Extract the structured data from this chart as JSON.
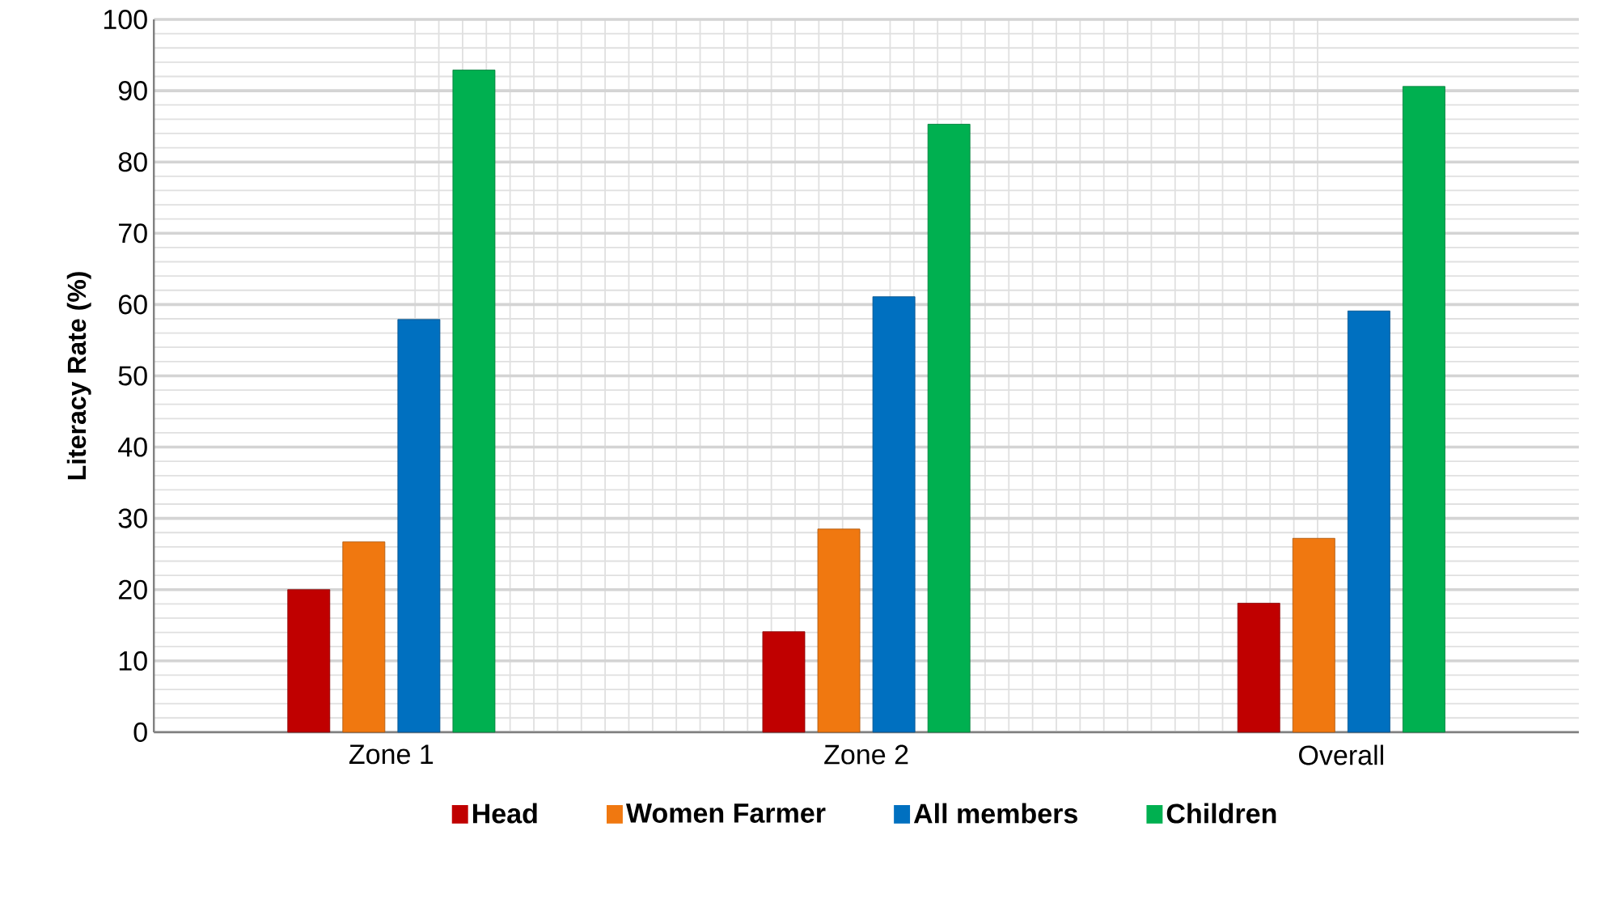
{
  "chart_data": {
    "type": "bar",
    "ylabel": "Literacy Rate (%)",
    "categories": [
      "Zone 1",
      "Zone 2",
      "Overall"
    ],
    "series": [
      {
        "name": "Head",
        "color": "#c00000",
        "values": [
          20.0,
          14.1,
          18.1
        ]
      },
      {
        "name": "Women Farmer",
        "color": "#f07810",
        "values": [
          26.7,
          28.5,
          27.2
        ]
      },
      {
        "name": "All members",
        "color": "#0070c0",
        "values": [
          57.9,
          61.1,
          59.1
        ]
      },
      {
        "name": "Children",
        "color": "#00b050",
        "values": [
          92.9,
          85.3,
          90.6
        ]
      }
    ],
    "ylim": [
      0,
      100
    ],
    "yticks": [
      0,
      10,
      20,
      30,
      40,
      50,
      60,
      70,
      80,
      90,
      100
    ],
    "grid": true,
    "legend": "bottom"
  }
}
